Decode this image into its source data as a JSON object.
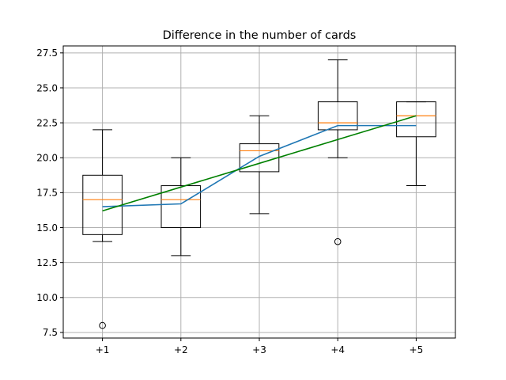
{
  "chart_data": {
    "type": "box",
    "title": "Difference in the number of cards",
    "xlabel": "",
    "ylabel": "",
    "categories": [
      "+1",
      "+2",
      "+3",
      "+4",
      "+5"
    ],
    "ylim": [
      7.1,
      28.0
    ],
    "yticks": [
      7.5,
      10.0,
      12.5,
      15.0,
      17.5,
      20.0,
      22.5,
      25.0,
      27.5
    ],
    "ytick_labels": [
      "7.5",
      "10.0",
      "12.5",
      "15.0",
      "17.5",
      "20.0",
      "22.5",
      "25.0",
      "27.5"
    ],
    "grid": true,
    "boxes": [
      {
        "category": "+1",
        "whisker_low": 14.0,
        "q1": 14.5,
        "median": 17.0,
        "q3": 18.75,
        "whisker_high": 22.0,
        "outliers": [
          8.0
        ]
      },
      {
        "category": "+2",
        "whisker_low": 13.0,
        "q1": 15.0,
        "median": 17.0,
        "q3": 18.0,
        "whisker_high": 20.0,
        "outliers": []
      },
      {
        "category": "+3",
        "whisker_low": 16.0,
        "q1": 19.0,
        "median": 20.5,
        "q3": 21.0,
        "whisker_high": 23.0,
        "outliers": []
      },
      {
        "category": "+4",
        "whisker_low": 20.0,
        "q1": 22.0,
        "median": 22.5,
        "q3": 24.0,
        "whisker_high": 27.0,
        "outliers": [
          14.0
        ]
      },
      {
        "category": "+5",
        "whisker_low": 18.0,
        "q1": 21.5,
        "median": 23.0,
        "q3": 24.0,
        "whisker_high": 24.0,
        "outliers": []
      }
    ],
    "series": [
      {
        "values": [
          16.5,
          16.7,
          20.1,
          22.3,
          22.3
        ],
        "color": "#1f77b4"
      },
      {
        "values": [
          16.2,
          17.9,
          19.6,
          21.3,
          23.0
        ],
        "color": "#008000"
      }
    ],
    "colors": {
      "box": "#000000",
      "median": "#ff7f0e",
      "grid": "#b0b0b0"
    }
  }
}
